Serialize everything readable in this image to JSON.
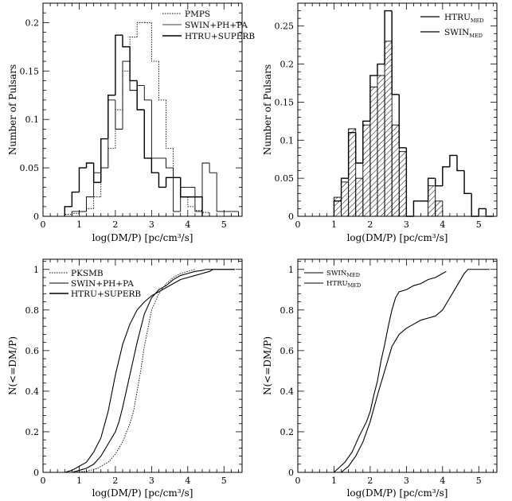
{
  "chart_data": [
    {
      "type": "histogram",
      "panel": "top-left",
      "xlabel": "log(DM/P) [pc/cm³/s]",
      "ylabel": "Number of Pulsars",
      "xlim": [
        0,
        5.5
      ],
      "ylim": [
        0,
        0.22
      ],
      "xticks": [
        "0",
        "1",
        "2",
        "3",
        "4",
        "5"
      ],
      "yticks": [
        "0",
        "0.05",
        "0.1",
        "0.15",
        "0.2"
      ],
      "ytick_values": [
        0,
        0.05,
        0.1,
        0.15,
        0.2
      ],
      "legend_position": "top-right",
      "bin_width": 0.2,
      "series": [
        {
          "name": "PMPS",
          "style": "dotted",
          "bins_start": [
            0.6,
            0.8,
            1.0,
            1.2,
            1.4,
            1.6,
            1.8,
            2.0,
            2.2,
            2.4,
            2.6,
            2.8,
            3.0,
            3.2,
            3.4,
            3.6,
            3.8,
            4.0,
            4.2,
            4.4
          ],
          "values": [
            0.002,
            0.003,
            0.005,
            0.008,
            0.02,
            0.05,
            0.07,
            0.11,
            0.15,
            0.185,
            0.2,
            0.2,
            0.16,
            0.12,
            0.07,
            0.04,
            0.02,
            0.01,
            0.006,
            0.004
          ]
        },
        {
          "name": "SWIN+PH+PA",
          "style": "solid-thin",
          "bins_start": [
            0.4,
            0.6,
            0.8,
            1.0,
            1.2,
            1.4,
            1.6,
            1.8,
            2.0,
            2.2,
            2.4,
            2.6,
            2.8,
            3.0,
            3.2,
            3.4,
            3.6,
            3.8,
            4.0,
            4.2,
            4.4,
            4.6,
            4.8,
            5.0,
            5.2
          ],
          "values": [
            0.0,
            0.0,
            0.005,
            0.005,
            0.02,
            0.045,
            0.05,
            0.12,
            0.09,
            0.16,
            0.13,
            0.135,
            0.12,
            0.06,
            0.06,
            0.05,
            0.005,
            0.03,
            0.03,
            0.005,
            0.055,
            0.045,
            0.005,
            0.005,
            0.005
          ]
        },
        {
          "name": "HTRU+SUPERB",
          "style": "solid",
          "bins_start": [
            0.6,
            0.8,
            1.0,
            1.2,
            1.4,
            1.6,
            1.8,
            2.0,
            2.2,
            2.4,
            2.6,
            2.8,
            3.0,
            3.2,
            3.4,
            3.6,
            3.8,
            4.0,
            4.2
          ],
          "values": [
            0.01,
            0.025,
            0.05,
            0.055,
            0.035,
            0.08,
            0.125,
            0.187,
            0.175,
            0.14,
            0.11,
            0.06,
            0.045,
            0.03,
            0.04,
            0.04,
            0.02,
            0.02,
            0.02
          ]
        }
      ]
    },
    {
      "type": "histogram",
      "panel": "top-right",
      "xlabel": "log(DM/P) [pc/cm³/s]",
      "ylabel": "Number of Pulsars",
      "xlim": [
        0,
        5.5
      ],
      "ylim": [
        0,
        0.28
      ],
      "xticks": [
        "0",
        "1",
        "2",
        "3",
        "4",
        "5"
      ],
      "yticks": [
        "0",
        "0.05",
        "0.1",
        "0.15",
        "0.2",
        "0.25"
      ],
      "ytick_values": [
        0,
        0.05,
        0.1,
        0.15,
        0.2,
        0.25
      ],
      "legend_position": "top-right",
      "bin_width": 0.2,
      "series": [
        {
          "name": "HTRU",
          "subscript": "MED",
          "style": "solid",
          "bins_start": [
            1.0,
            1.2,
            1.4,
            1.6,
            1.8,
            2.0,
            2.2,
            2.4,
            2.6,
            2.8,
            3.0,
            3.2,
            3.4,
            3.6,
            3.8,
            4.0,
            4.2,
            4.4,
            4.6,
            4.8,
            5.0,
            5.2
          ],
          "values": [
            0.02,
            0.05,
            0.11,
            0.07,
            0.125,
            0.185,
            0.2,
            0.27,
            0.16,
            0.09,
            0.0,
            0.02,
            0.02,
            0.05,
            0.04,
            0.065,
            0.08,
            0.06,
            0.03,
            0.0,
            0.01,
            0.0
          ]
        },
        {
          "name": "SWIN",
          "subscript": "MED",
          "style": "hatched",
          "bins_start": [
            1.0,
            1.2,
            1.4,
            1.6,
            1.8,
            2.0,
            2.2,
            2.4,
            2.6,
            2.8,
            3.0,
            3.2,
            3.4,
            3.6,
            3.8,
            4.0
          ],
          "values": [
            0.025,
            0.045,
            0.115,
            0.05,
            0.12,
            0.17,
            0.185,
            0.23,
            0.12,
            0.085,
            0.0,
            0.0,
            0.0,
            0.04,
            0.02,
            0.0
          ]
        }
      ]
    },
    {
      "type": "line",
      "panel": "bottom-left",
      "xlabel": "log(DM/P) [pc/cm³/s]",
      "ylabel": "N(<=DM/P)",
      "xlim": [
        0,
        5.5
      ],
      "ylim": [
        0,
        1.05
      ],
      "xticks": [
        "0",
        "1",
        "2",
        "3",
        "4",
        "5"
      ],
      "yticks": [
        "0",
        "0.2",
        "0.4",
        "0.6",
        "0.8",
        "1"
      ],
      "ytick_values": [
        0,
        0.2,
        0.4,
        0.6,
        0.8,
        1.0
      ],
      "legend_position": "top-left",
      "series": [
        {
          "name": "PKSMB",
          "style": "dotted",
          "x": [
            0.8,
            1.2,
            1.5,
            1.8,
            2.0,
            2.2,
            2.4,
            2.5,
            2.6,
            2.7,
            2.8,
            2.9,
            3.0,
            3.2,
            3.4,
            3.6,
            3.8,
            4.0,
            4.2
          ],
          "y": [
            0.0,
            0.005,
            0.02,
            0.05,
            0.09,
            0.15,
            0.24,
            0.3,
            0.4,
            0.5,
            0.62,
            0.71,
            0.8,
            0.88,
            0.93,
            0.96,
            0.98,
            0.99,
            1.0
          ]
        },
        {
          "name": "SWIN+PH+PA",
          "style": "solid",
          "x": [
            0.8,
            1.0,
            1.2,
            1.4,
            1.6,
            1.8,
            2.0,
            2.1,
            2.2,
            2.3,
            2.4,
            2.5,
            2.6,
            2.7,
            2.8,
            2.9,
            3.0,
            3.2,
            3.4,
            3.6,
            3.8,
            4.0,
            4.2,
            4.4,
            4.5,
            4.6,
            4.8,
            5.0,
            5.3
          ],
          "y": [
            0.0,
            0.01,
            0.02,
            0.04,
            0.08,
            0.14,
            0.2,
            0.25,
            0.32,
            0.4,
            0.48,
            0.56,
            0.64,
            0.71,
            0.78,
            0.82,
            0.86,
            0.9,
            0.92,
            0.95,
            0.97,
            0.98,
            0.99,
            0.995,
            1.0,
            1.0,
            1.0,
            1.0,
            1.0
          ]
        },
        {
          "name": "HTRU+SUPERB",
          "style": "solid",
          "x": [
            0.6,
            0.8,
            1.0,
            1.2,
            1.4,
            1.6,
            1.8,
            2.0,
            2.2,
            2.4,
            2.6,
            2.8,
            3.0,
            3.2,
            3.4,
            3.6,
            3.8,
            4.0,
            4.2,
            4.4,
            4.6,
            4.7,
            5.3
          ],
          "y": [
            0.0,
            0.01,
            0.03,
            0.05,
            0.1,
            0.17,
            0.3,
            0.48,
            0.63,
            0.73,
            0.8,
            0.84,
            0.87,
            0.89,
            0.91,
            0.93,
            0.95,
            0.96,
            0.97,
            0.98,
            0.99,
            1.0,
            1.0
          ]
        }
      ]
    },
    {
      "type": "line",
      "panel": "bottom-right",
      "xlabel": "log(DM/P) [pc/cm³/s]",
      "ylabel": "N(<=DM/P)",
      "xlim": [
        0,
        5.5
      ],
      "ylim": [
        0,
        1.05
      ],
      "xticks": [
        "0",
        "1",
        "2",
        "3",
        "4",
        "5"
      ],
      "yticks": [
        "0",
        "0.2",
        "0.4",
        "0.6",
        "0.8",
        "1"
      ],
      "ytick_values": [
        0,
        0.2,
        0.4,
        0.6,
        0.8,
        1.0
      ],
      "legend_position": "top-left",
      "series": [
        {
          "name": "SWIN",
          "subscript": "MED",
          "style": "solid",
          "x": [
            1.0,
            1.3,
            1.5,
            1.7,
            1.9,
            2.0,
            2.1,
            2.2,
            2.3,
            2.4,
            2.5,
            2.6,
            2.7,
            2.8,
            3.0,
            3.2,
            3.4,
            3.6,
            3.8,
            4.0,
            4.1
          ],
          "y": [
            0.0,
            0.05,
            0.1,
            0.18,
            0.25,
            0.3,
            0.38,
            0.45,
            0.55,
            0.63,
            0.72,
            0.8,
            0.86,
            0.89,
            0.9,
            0.92,
            0.93,
            0.95,
            0.96,
            0.98,
            0.99
          ]
        },
        {
          "name": "HTRU",
          "subscript": "MED",
          "style": "solid",
          "x": [
            1.2,
            1.4,
            1.6,
            1.8,
            2.0,
            2.2,
            2.4,
            2.6,
            2.8,
            3.0,
            3.2,
            3.4,
            3.6,
            3.8,
            4.0,
            4.2,
            4.4,
            4.6,
            4.7,
            5.3
          ],
          "y": [
            0.0,
            0.03,
            0.08,
            0.15,
            0.25,
            0.38,
            0.5,
            0.62,
            0.68,
            0.71,
            0.73,
            0.75,
            0.76,
            0.77,
            0.8,
            0.86,
            0.92,
            0.98,
            1.0,
            1.0
          ]
        }
      ]
    }
  ]
}
